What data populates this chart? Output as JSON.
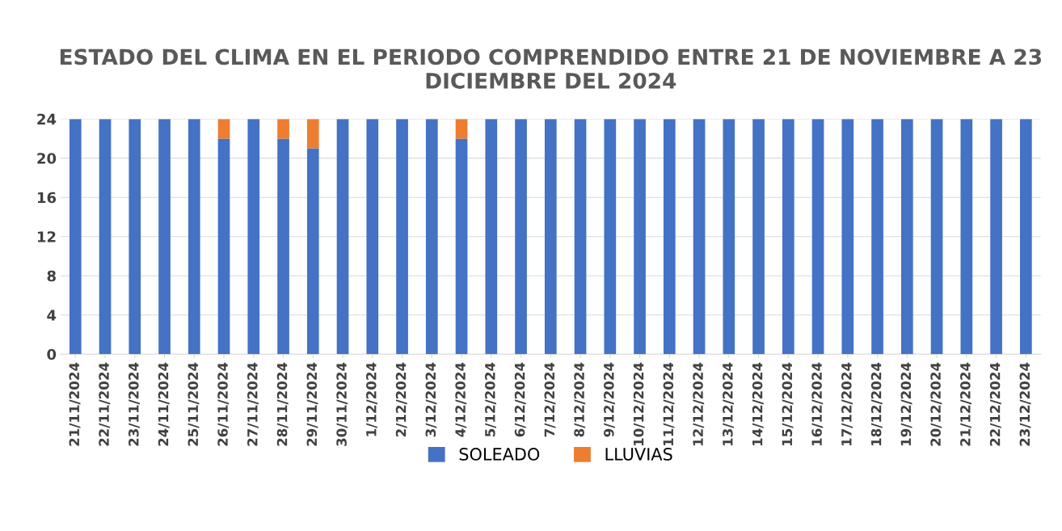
{
  "chart_data": {
    "type": "bar",
    "stacked": true,
    "title": "ESTADO DEL CLIMA EN EL PERIODO COMPRENDIDO ENTRE 21 DE NOVIEMBRE A 23 DICIEMBRE DEL 2024",
    "categories": [
      "21/11/2024",
      "22/11/2024",
      "23/11/2024",
      "24/11/2024",
      "25/11/2024",
      "26/11/2024",
      "27/11/2024",
      "28/11/2024",
      "29/11/2024",
      "30/11/2024",
      "1/12/2024",
      "2/12/2024",
      "3/12/2024",
      "4/12/2024",
      "5/12/2024",
      "6/12/2024",
      "7/12/2024",
      "8/12/2024",
      "9/12/2024",
      "10/12/2024",
      "11/12/2024",
      "12/12/2024",
      "13/12/2024",
      "14/12/2024",
      "15/12/2024",
      "16/12/2024",
      "17/12/2024",
      "18/12/2024",
      "19/12/2024",
      "20/12/2024",
      "21/12/2024",
      "22/12/2024",
      "23/12/2024"
    ],
    "series": [
      {
        "name": "SOLEADO",
        "color": "#4472c4",
        "values": [
          24,
          24,
          24,
          24,
          24,
          22,
          24,
          22,
          21,
          24,
          24,
          24,
          24,
          22,
          24,
          24,
          24,
          24,
          24,
          24,
          24,
          24,
          24,
          24,
          24,
          24,
          24,
          24,
          24,
          24,
          24,
          24,
          24
        ]
      },
      {
        "name": "LLUVIAS",
        "color": "#ed7d31",
        "values": [
          0,
          0,
          0,
          0,
          0,
          2,
          0,
          2,
          3,
          0,
          0,
          0,
          0,
          2,
          0,
          0,
          0,
          0,
          0,
          0,
          0,
          0,
          0,
          0,
          0,
          0,
          0,
          0,
          0,
          0,
          0,
          0,
          0
        ]
      }
    ],
    "ylim": [
      0,
      24
    ],
    "yticks": [
      0,
      4,
      8,
      12,
      16,
      20,
      24
    ],
    "grid": "y",
    "legend": "bottom"
  }
}
